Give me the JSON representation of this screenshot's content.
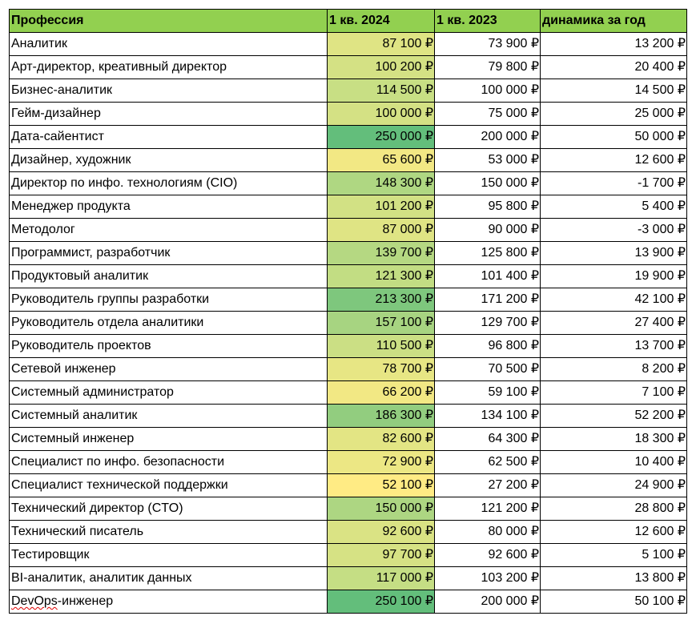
{
  "table": {
    "headers": [
      "Профессия",
      "1 кв. 2024",
      "1 кв. 2023",
      "динамика за год"
    ],
    "header_color": "#92d050",
    "heatmap_scale": {
      "low": "#ffeb84",
      "mid": "#c9df84",
      "high": "#63be7b"
    },
    "rows": [
      {
        "name": "Аналитик",
        "q2024": "87 100 ₽",
        "q2023": "73 900 ₽",
        "delta": "13 200 ₽",
        "level": 0.177
      },
      {
        "name": "Арт-директор, креативный директор",
        "q2024": "100 200 ₽",
        "q2023": "79 800 ₽",
        "delta": "20 400 ₽",
        "level": 0.24
      },
      {
        "name": "Бизнес-аналитик",
        "q2024": "114 500 ₽",
        "q2023": "100 000 ₽",
        "delta": "14 500 ₽",
        "level": 0.31
      },
      {
        "name": " Гейм-дизайнер",
        "q2024": "100 000 ₽",
        "q2023": "75 000 ₽",
        "delta": "25 000 ₽",
        "level": 0.24
      },
      {
        "name": "Дата-сайентист",
        "q2024": "250 000 ₽",
        "q2023": "200 000 ₽",
        "delta": "50 000 ₽",
        "level": 1.0
      },
      {
        "name": "Дизайнер, художник",
        "q2024": "65 600 ₽",
        "q2023": "53 000 ₽",
        "delta": "12 600 ₽",
        "level": 0.07
      },
      {
        "name": "Директор по инфо. технологиям (CIO)",
        "q2024": "148 300 ₽",
        "q2023": "150 000 ₽",
        "delta": "-1 700 ₽",
        "level": 0.48
      },
      {
        "name": "Менеджер продукта",
        "q2024": "101 200 ₽",
        "q2023": "95 800 ₽",
        "delta": "5 400 ₽",
        "level": 0.25
      },
      {
        "name": "Методолог",
        "q2024": "87 000 ₽",
        "q2023": "90 000 ₽",
        "delta": "-3 000 ₽",
        "level": 0.177
      },
      {
        "name": "Программист, разработчик",
        "q2024": "139 700 ₽",
        "q2023": "125 800 ₽",
        "delta": "13 900 ₽",
        "level": 0.44
      },
      {
        "name": "Продуктовый аналитик",
        "q2024": "121 300 ₽",
        "q2023": "101 400 ₽",
        "delta": "19 900 ₽",
        "level": 0.35
      },
      {
        "name": "Руководитель группы разработки",
        "q2024": "213 300 ₽",
        "q2023": "171 200 ₽",
        "delta": "42 100 ₽",
        "level": 0.815
      },
      {
        "name": "Руководитель отдела аналитики",
        "q2024": "157 100 ₽",
        "q2023": "129 700 ₽",
        "delta": "27 400 ₽",
        "level": 0.53
      },
      {
        "name": "Руководитель проектов",
        "q2024": "110 500 ₽",
        "q2023": "96 800 ₽",
        "delta": "13 700 ₽",
        "level": 0.29
      },
      {
        "name": "Сетевой инженер",
        "q2024": "78 700 ₽",
        "q2023": "70 500 ₽",
        "delta": "8 200 ₽",
        "level": 0.135
      },
      {
        "name": "Системный администратор",
        "q2024": "66 200 ₽",
        "q2023": "59 100 ₽",
        "delta": "7 100 ₽",
        "level": 0.07
      },
      {
        "name": "Системный аналитик",
        "q2024": "186 300 ₽",
        "q2023": "134 100 ₽",
        "delta": "52 200 ₽",
        "level": 0.68
      },
      {
        "name": "Системный инженер",
        "q2024": "82 600 ₽",
        "q2023": "64 300 ₽",
        "delta": "18 300 ₽",
        "level": 0.155
      },
      {
        "name": "Специалист по инфо. безопасности",
        "q2024": "72 900 ₽",
        "q2023": "62 500 ₽",
        "delta": "10 400 ₽",
        "level": 0.105
      },
      {
        "name": "Специалист технической поддержки",
        "q2024": "52 100 ₽",
        "q2023": "27 200 ₽",
        "delta": "24 900 ₽",
        "level": 0.0
      },
      {
        "name": "Технический директор (CTO)",
        "q2024": "150 000 ₽",
        "q2023": "121 200 ₽",
        "delta": "28 800 ₽",
        "level": 0.49
      },
      {
        "name": "Технический писатель",
        "q2024": "92 600 ₽",
        "q2023": "80 000 ₽",
        "delta": "12 600 ₽",
        "level": 0.205
      },
      {
        "name": "Тестировщик",
        "q2024": "97 700 ₽",
        "q2023": "92 600 ₽",
        "delta": "5 100 ₽",
        "level": 0.23
      },
      {
        "name": "BI-аналитик, аналитик данных",
        "q2024": "117 000 ₽",
        "q2023": "103 200 ₽",
        "delta": "13 800 ₽",
        "level": 0.33
      },
      {
        "name": "DevOps-инженер",
        "q2024": "250 100 ₽",
        "q2023": "200 000 ₽",
        "delta": "50 100 ₽",
        "level": 1.0
      }
    ]
  }
}
